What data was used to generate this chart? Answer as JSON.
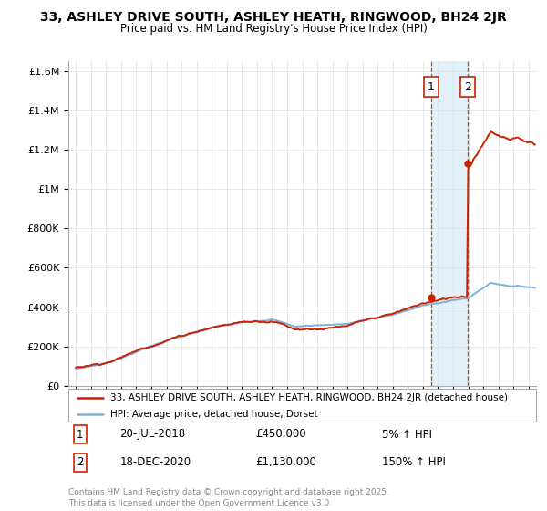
{
  "title": "33, ASHLEY DRIVE SOUTH, ASHLEY HEATH, RINGWOOD, BH24 2JR",
  "subtitle": "Price paid vs. HM Land Registry's House Price Index (HPI)",
  "ylabel_ticks": [
    "£0",
    "£200K",
    "£400K",
    "£600K",
    "£800K",
    "£1M",
    "£1.2M",
    "£1.4M",
    "£1.6M"
  ],
  "ytick_values": [
    0,
    200000,
    400000,
    600000,
    800000,
    1000000,
    1200000,
    1400000,
    1600000
  ],
  "ylim": [
    0,
    1650000
  ],
  "xlim_start": 1994.5,
  "xlim_end": 2025.5,
  "hpi_color": "#7ab3d9",
  "property_color": "#cc2200",
  "sale1_date": 2018.54,
  "sale1_price": 450000,
  "sale2_date": 2020.96,
  "sale2_price": 1130000,
  "annotation1_label": "1",
  "annotation2_label": "2",
  "shade_color": "#d0e8f5",
  "legend_property": "33, ASHLEY DRIVE SOUTH, ASHLEY HEATH, RINGWOOD, BH24 2JR (detached house)",
  "legend_hpi": "HPI: Average price, detached house, Dorset",
  "note1_label": "1",
  "note1_date": "20-JUL-2018",
  "note1_price": "£450,000",
  "note1_pct": "5% ↑ HPI",
  "note2_label": "2",
  "note2_date": "18-DEC-2020",
  "note2_price": "£1,130,000",
  "note2_pct": "150% ↑ HPI",
  "footer": "Contains HM Land Registry data © Crown copyright and database right 2025.\nThis data is licensed under the Open Government Licence v3.0.",
  "background_color": "#ffffff",
  "grid_color": "#dddddd",
  "annotation_box_color": "#cc2200"
}
